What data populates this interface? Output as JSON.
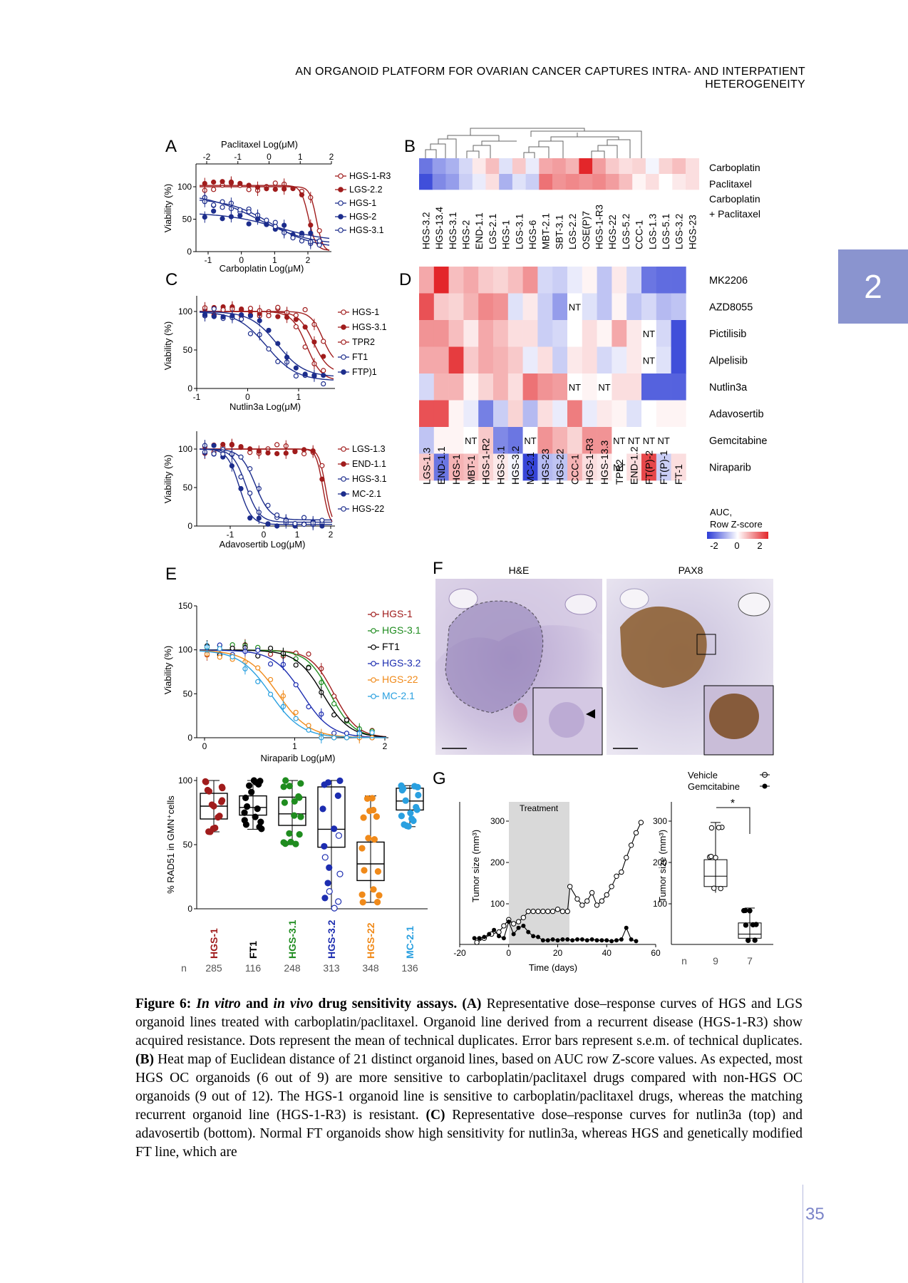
{
  "header": "AN ORGANOID PLATFORM FOR OVARIAN CANCER CAPTURES INTRA- AND INTERPATIENT HETEROGENEITY",
  "chapter": "2",
  "page_number": "35",
  "figure": {
    "panel_A": {
      "letter": "A",
      "top_axis_label": "Paclitaxel Log(μM)",
      "bottom_axis_label": "Carboplatin Log(μM)",
      "y_label": "Viability (%)",
      "top_ticks": [
        "-2",
        "-1",
        "0",
        "1",
        "2"
      ],
      "bottom_ticks": [
        "-1",
        "0",
        "1",
        "2"
      ],
      "y_ticks": [
        "0",
        "50",
        "100"
      ],
      "legend": [
        {
          "name": "HGS-1-R3",
          "color": "#a01c1c",
          "filled": false
        },
        {
          "name": "LGS-2.2",
          "color": "#a01c1c",
          "filled": true
        },
        {
          "name": "HGS-1",
          "color": "#1c2d8c",
          "filled": false
        },
        {
          "name": "HGS-2",
          "color": "#1c2d8c",
          "filled": true
        },
        {
          "name": "HGS-3.1",
          "color": "#1c2d8c",
          "filled": false
        }
      ]
    },
    "panel_B": {
      "letter": "B",
      "rows": [
        "Carboplatin",
        "Paclitaxel",
        "Carboplatin",
        "+ Paclitaxel"
      ],
      "columns": [
        "HGS-3.2",
        "HGS-13.4",
        "HGS-3.1",
        "HGS-2",
        "END-1.1",
        "LGS-2.1",
        "HGS-1",
        "LGS-3.1",
        "HGS-6",
        "MBT-2.1",
        "SBT-3.1",
        "LGS-2.2",
        "OSE(P)7",
        "HGS-1-R3",
        "HGS-22",
        "LGS-5.2",
        "CCC-1",
        "LGS-1.3",
        "LGS-5.1",
        "LGS-3.2",
        "HGS-23"
      ]
    },
    "panel_C": {
      "letter": "C",
      "top": {
        "x_label": "Nutlin3a Log(μM)",
        "y_label": "Viability (%)",
        "x_ticks": [
          "-1",
          "0",
          "1"
        ],
        "y_ticks": [
          "0",
          "50",
          "100"
        ],
        "legend": [
          {
            "name": "HGS-1",
            "color": "#a01c1c",
            "filled": false
          },
          {
            "name": "HGS-3.1",
            "color": "#a01c1c",
            "filled": true
          },
          {
            "name": "TPR2",
            "color": "#a01c1c",
            "filled": false
          },
          {
            "name": "FT1",
            "color": "#1c2d8c",
            "filled": false
          },
          {
            "name": "FTP)1",
            "color": "#1c2d8c",
            "filled": true
          }
        ]
      },
      "bottom": {
        "x_label": "Adavosertib Log(μM)",
        "y_label": "Viability (%)",
        "x_ticks": [
          "-1",
          "0",
          "1",
          "2"
        ],
        "y_ticks": [
          "0",
          "50",
          "100"
        ],
        "legend": [
          {
            "name": "LGS-1.3",
            "color": "#a01c1c",
            "filled": false
          },
          {
            "name": "END-1.1",
            "color": "#a01c1c",
            "filled": true
          },
          {
            "name": "HGS-3.1",
            "color": "#1c2d8c",
            "filled": false
          },
          {
            "name": "MC-2.1",
            "color": "#1c2d8c",
            "filled": true
          },
          {
            "name": "HGS-22",
            "color": "#1c2d8c",
            "filled": false
          }
        ]
      }
    },
    "panel_D": {
      "letter": "D",
      "rows": [
        "MK2206",
        "AZD8055",
        "Pictilisib",
        "Alpelisib",
        "Nutlin3a",
        "Adavosertib",
        "Gemcitabine",
        "Niraparib"
      ],
      "columns": [
        "LGS-1.3",
        "END-1.1",
        "HGS-1",
        "MBT-1",
        "HGS-1-R2",
        "HGS-3.1",
        "HGS-3.2",
        "MC-2.1",
        "HGS-23",
        "HGS-22",
        "CCC-1",
        "HGS-1-R3",
        "HGS-13.3",
        "TPR2",
        "END-1.2",
        "FT(P)-2",
        "FT(P)-1",
        "FT-1"
      ],
      "nt_label": "NT",
      "colorbar_title": "AUC,",
      "colorbar_subtitle": "Row Z-score",
      "colorbar_ticks": [
        "-2",
        "0",
        "2"
      ]
    },
    "panel_E": {
      "letter": "E",
      "x_label": "Niraparib Log(μM)",
      "y_label": "Viability (%)",
      "x_ticks": [
        "0",
        "1",
        "2"
      ],
      "y_ticks": [
        "0",
        "50",
        "100",
        "150"
      ],
      "legend": [
        {
          "name": "HGS-1",
          "color": "#a01c1c"
        },
        {
          "name": "HGS-3.1",
          "color": "#1f8c1f"
        },
        {
          "name": "FT1",
          "color": "#000000"
        },
        {
          "name": "HGS-3.2",
          "color": "#1c2db0"
        },
        {
          "name": "HGS-22",
          "color": "#f08a1a"
        },
        {
          "name": "MC-2.1",
          "color": "#2aa0e0"
        }
      ],
      "box_y_label": "% RAD51 in GMN⁺cells",
      "box_y_ticks": [
        "0",
        "50",
        "100"
      ],
      "box_categories": [
        {
          "name": "HGS-1",
          "color": "#a01c1c",
          "n": "285"
        },
        {
          "name": "FT1",
          "color": "#000000",
          "n": "116"
        },
        {
          "name": "HGS-3.1",
          "color": "#1f8c1f",
          "n": "248"
        },
        {
          "name": "HGS-3.2",
          "color": "#1c2db0",
          "n": "313"
        },
        {
          "name": "HGS-22",
          "color": "#f08a1a",
          "n": "348"
        },
        {
          "name": "MC-2.1",
          "color": "#2aa0e0",
          "n": "136"
        }
      ],
      "n_label": "n"
    },
    "panel_F": {
      "letter": "F",
      "left_title": "H&E",
      "right_title": "PAX8"
    },
    "panel_G": {
      "letter": "G",
      "treatment_label": "Treatment",
      "y_label": "Tumor size (mm³)",
      "x_label": "Time (days)",
      "x_ticks": [
        "-20",
        "0",
        "20",
        "40",
        "60"
      ],
      "y_ticks": [
        "100",
        "200",
        "300"
      ],
      "legend": [
        {
          "name": "Vehicle",
          "filled": false
        },
        {
          "name": "Gemcitabine",
          "filled": true
        }
      ],
      "box_y_label": "Tumor size (mm³)",
      "box_y_ticks": [
        "100",
        "200",
        "300"
      ],
      "significance": "*",
      "n_label": "n",
      "n_values": [
        "9",
        "7"
      ]
    }
  },
  "caption": {
    "label": "Figure 6:",
    "title_italic": "In vitro",
    "title_and": "and",
    "title_italic2": "in vivo",
    "title_rest": "drug sensitivity assays.",
    "part_A_letter": "(A)",
    "part_A": "Representative dose–response curves of HGS and LGS organoid lines treated with carboplatin/paclitaxel. Organoid line derived from a recurrent disease (HGS-1-R3) show acquired resistance. Dots represent the mean of technical duplicates. Error bars represent s.e.m. of technical duplicates.",
    "part_B_letter": "(B)",
    "part_B": "Heat map of Euclidean distance of 21 distinct organoid lines, based on AUC row Z-score values. As expected, most HGS OC organoids (6 out of 9) are more sensitive to carboplatin/paclitaxel drugs compared with non-HGS OC organoids (9 out of 12). The HGS-1 organoid line is sensitive to carboplatin/paclitaxel drugs, whereas the matching recurrent organoid line (HGS-1-R3) is resistant.",
    "part_C_letter": "(C)",
    "part_C": "Representative dose–response curves for nutlin3a (top) and adavosertib (bottom). Normal FT organoids show high sensitivity for nutlin3a, whereas HGS and genetically modified FT line, which are"
  }
}
